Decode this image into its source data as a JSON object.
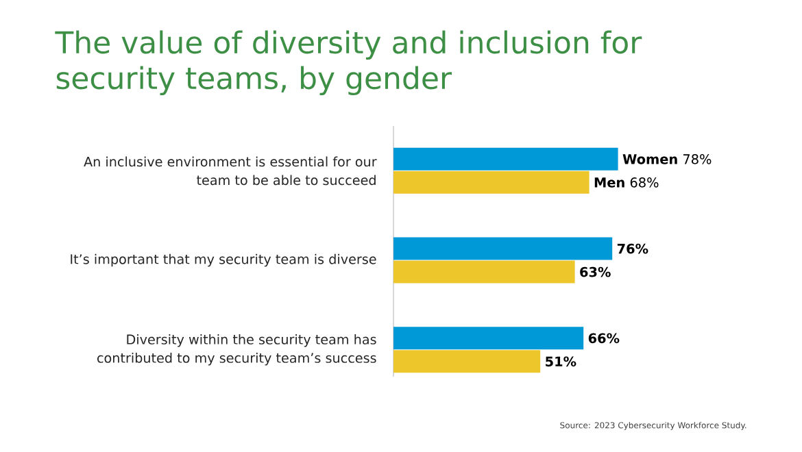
{
  "chart_data": {
    "type": "bar",
    "orientation": "horizontal",
    "title": "The value of diversity and inclusion for security teams, by gender",
    "categories": [
      "An inclusive environment is essential for our team to be able to succeed",
      "It’s important that my security team is diverse",
      "Diversity within the security team has contributed to my security team’s success"
    ],
    "series": [
      {
        "color": "#0099d8",
        "values": [
          78,
          76,
          66
        ],
        "value_labels": [
          "**Women** 78%",
          "76%",
          "66%"
        ]
      },
      {
        "color": "#ecc62b",
        "values": [
          68,
          63,
          51
        ],
        "value_labels": [
          "**Men** 68%",
          "63%",
          "51%"
        ]
      }
    ],
    "annotations": [
      "Source: 2023 Cybersecurity Workforce Study."
    ]
  }
}
